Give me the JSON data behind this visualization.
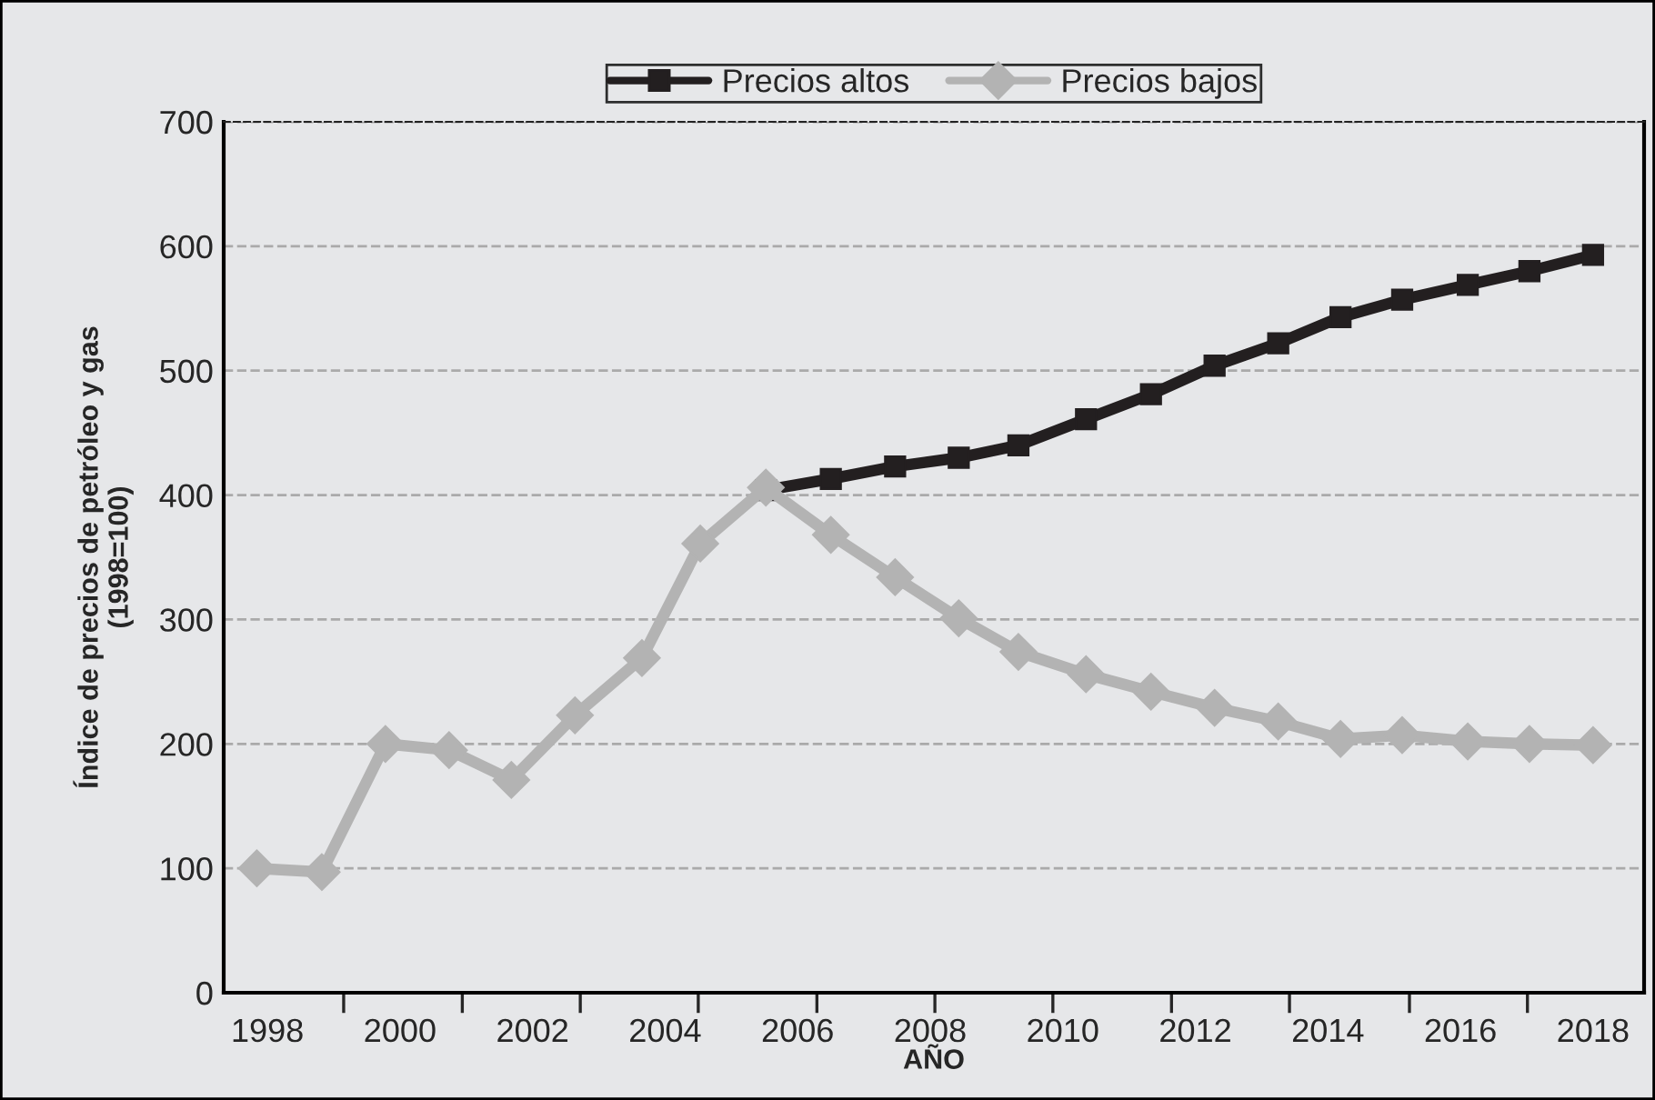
{
  "chart_data": {
    "type": "line",
    "xlabel": "AÑO",
    "ylabel": "Índice de precios de petróleo y gas\n(1998=100)",
    "x": [
      1997.84,
      1998.82,
      1999.78,
      2000.74,
      2001.68,
      2002.64,
      2003.65,
      2004.53,
      2005.52,
      2006.5,
      2007.47,
      2008.43,
      2009.33,
      2010.35,
      2011.33,
      2012.29,
      2013.25,
      2014.19,
      2015.12,
      2016.11,
      2017.04,
      2018.0
    ],
    "xlim": [
      1997.34,
      2018.77
    ],
    "xticks": [
      {
        "value": 1998,
        "label": "1998"
      },
      {
        "value": 1999.15,
        "label": null
      },
      {
        "value": 2000,
        "label": "2000"
      },
      {
        "value": 2000.94,
        "label": null
      },
      {
        "value": 2002,
        "label": "2002"
      },
      {
        "value": 2002.72,
        "label": null
      },
      {
        "value": 2004,
        "label": "2004"
      },
      {
        "value": 2004.5,
        "label": null
      },
      {
        "value": 2006,
        "label": "2006"
      },
      {
        "value": 2006.29,
        "label": null
      },
      {
        "value": 2008,
        "label": "2008"
      },
      {
        "value": 2008.07,
        "label": null
      },
      {
        "value": 2009.85,
        "label": null
      },
      {
        "value": 2010,
        "label": "2010"
      },
      {
        "value": 2011.64,
        "label": null
      },
      {
        "value": 2012,
        "label": "2012"
      },
      {
        "value": 2013.42,
        "label": null
      },
      {
        "value": 2014,
        "label": "2014"
      },
      {
        "value": 2015.23,
        "label": null
      },
      {
        "value": 2016,
        "label": "2016"
      },
      {
        "value": 2017.01,
        "label": null
      },
      {
        "value": 2018,
        "label": "2018"
      }
    ],
    "ylim": [
      0,
      700
    ],
    "yticks": [
      0,
      100,
      200,
      300,
      400,
      500,
      600,
      700
    ],
    "grid": "y",
    "legend": "top",
    "line_style": "solid",
    "series": [
      {
        "name": "Precios altos",
        "color": "#231f20",
        "marker": "square",
        "values": [
          null,
          null,
          null,
          null,
          null,
          null,
          null,
          null,
          404,
          413,
          423,
          430,
          440,
          461,
          481,
          504,
          522,
          543,
          557,
          569,
          580,
          593
        ]
      },
      {
        "name": "Precios bajos",
        "color": "#b3b3b3",
        "marker": "diamond",
        "values": [
          100,
          97,
          200,
          195,
          171,
          223,
          269,
          361,
          406,
          368,
          334,
          301,
          274,
          256,
          242,
          229,
          218,
          204,
          207,
          202,
          200,
          199
        ]
      }
    ]
  }
}
